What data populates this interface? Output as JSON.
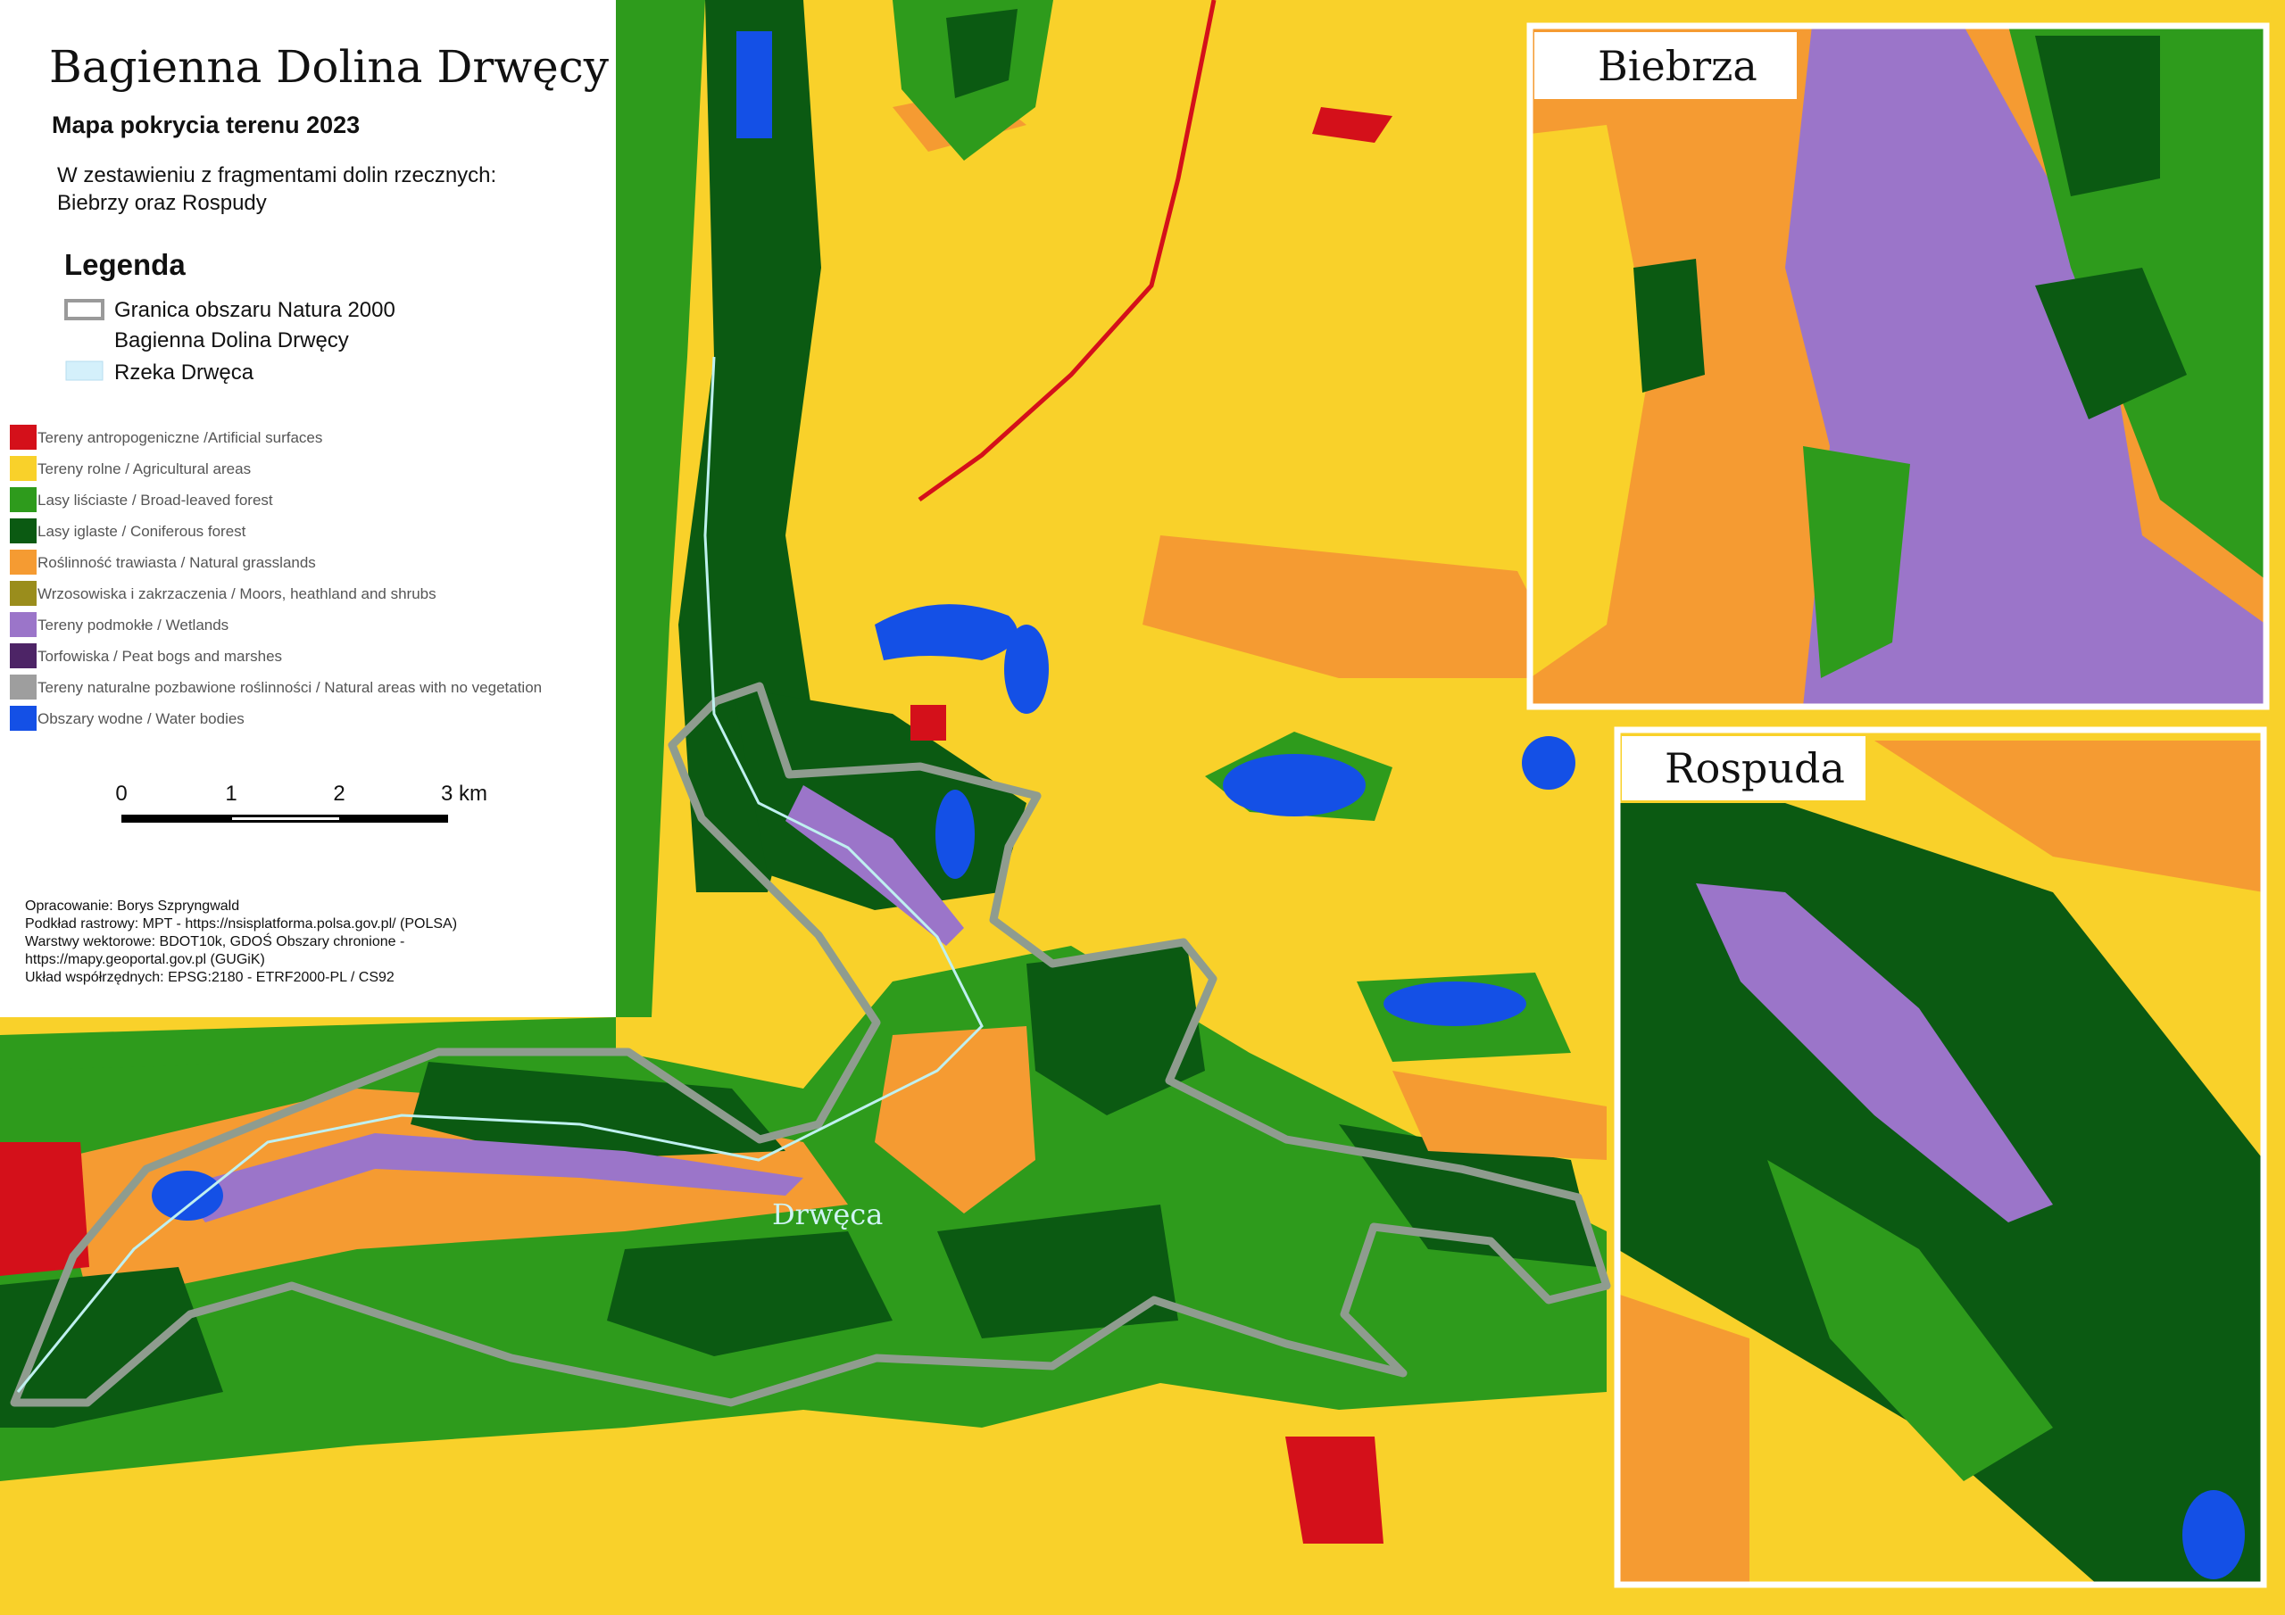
{
  "header": {
    "title": "Bagienna Dolina Drwęcy",
    "subtitle": "Mapa pokrycia terenu 2023",
    "description": [
      "W zestawieniu z fragmentami dolin rzecznych:",
      "Biebrzy oraz Rospudy"
    ]
  },
  "legend": {
    "title": "Legenda",
    "boundary": [
      "Granica obszaru Natura 2000",
      "Bagienna Dolina Drwęcy"
    ],
    "river": "Rzeka Drwęca",
    "classes": [
      {
        "label": "Tereny antropogeniczne /Artificial surfaces",
        "color": "#d4101a"
      },
      {
        "label": "Tereny rolne / Agricultural areas",
        "color": "#f9d12a"
      },
      {
        "label": "Lasy liściaste / Broad-leaved forest",
        "color": "#2e9b1c"
      },
      {
        "label": "Lasy iglaste / Coniferous forest",
        "color": "#0b5a12"
      },
      {
        "label": "Roślinność trawiasta / Natural grasslands",
        "color": "#f59b32"
      },
      {
        "label": "Wrzosowiska i zakrzaczenia / Moors, heathland and shrubs",
        "color": "#9a8d1c"
      },
      {
        "label": "Tereny podmokłe / Wetlands",
        "color": "#9b75c9"
      },
      {
        "label": "Torfowiska / Peat bogs and marshes",
        "color": "#4d2466"
      },
      {
        "label": "Tereny naturalne pozbawione roślinności / Natural areas with no vegetation",
        "color": "#9e9e9e"
      },
      {
        "label": "Obszary wodne / Water bodies",
        "color": "#1450e6"
      }
    ]
  },
  "scale_bar": {
    "labels": [
      "0",
      "1",
      "2",
      "3 km"
    ]
  },
  "credits": [
    "Opracowanie: Borys Szpryngwald",
    "Podkład rastrowy: MPT - https://nsisplatforma.polsa.gov.pl/ (POLSA)",
    "Warstwy wektorowe: BDOT10k, GDOŚ Obszary chronione -",
    "https://mapy.geoportal.gov.pl (GUGiK)",
    "Układ współrzędnych: EPSG:2180 - ETRF2000-PL / CS92"
  ],
  "map": {
    "river_label": "Drwęca"
  },
  "insets": [
    {
      "title": "Biebrza"
    },
    {
      "title": "Rospuda"
    }
  ]
}
